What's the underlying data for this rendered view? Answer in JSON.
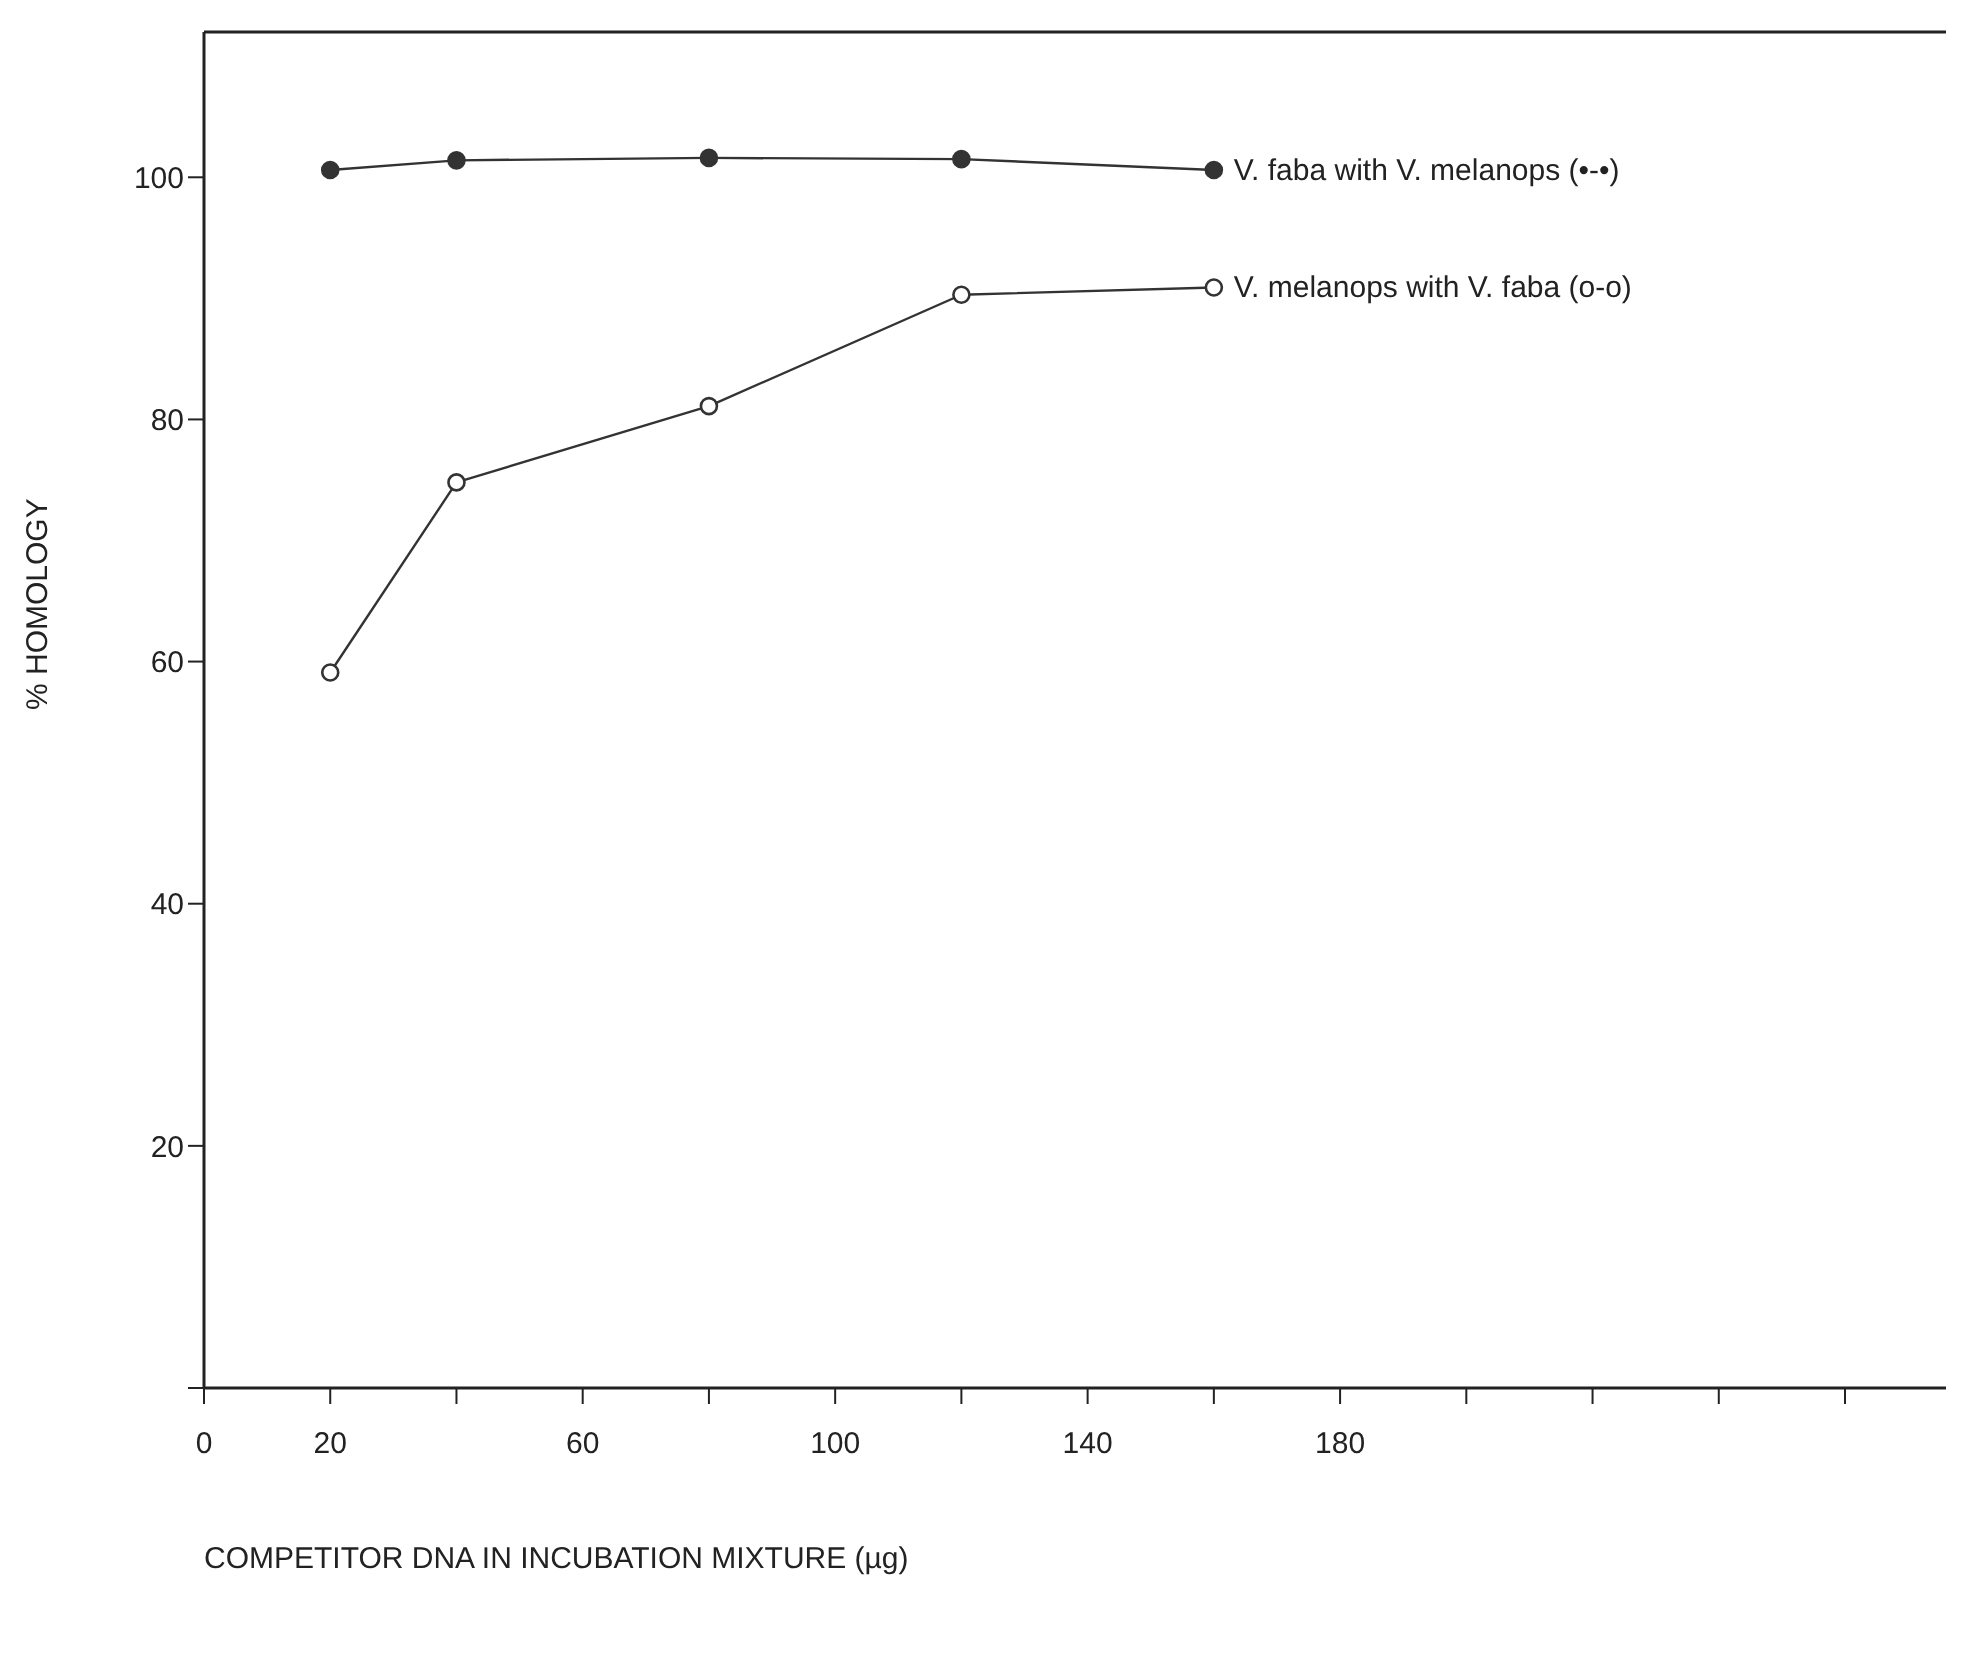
{
  "chart_data": {
    "type": "line",
    "xlabel": "COMPETITOR DNA IN INCUBATION MIXTURE (µg)",
    "ylabel": "% HOMOLOGY",
    "x": [
      20,
      40,
      80,
      120,
      160
    ],
    "series": [
      {
        "name": "V. faba with V. melanops (•-•)",
        "color": "#333333",
        "values": [
          100.6,
          101.4,
          101.6,
          101.5,
          100.6
        ]
      },
      {
        "name": "V. melanops with V. faba (o-o)",
        "color": "#333333",
        "values": [
          59.1,
          74.8,
          81.1,
          90.3,
          90.9
        ]
      }
    ],
    "xlim": [
      0,
      276
    ],
    "xticks": [
      0,
      20,
      {
        "value": 40,
        "label": null
      },
      60,
      {
        "value": 80,
        "label": null
      },
      100,
      {
        "value": 120,
        "label": null
      },
      140,
      {
        "value": 160,
        "label": null
      },
      180,
      {
        "value": 200,
        "label": null
      },
      {
        "value": 220,
        "label": null
      },
      {
        "value": 240,
        "label": null
      },
      {
        "value": 260,
        "label": null
      }
    ],
    "ylim": [
      0,
      112
    ],
    "yticks": [
      {
        "value": 0,
        "label": null
      },
      20,
      40,
      60,
      80,
      100
    ],
    "grid": false,
    "legend": false,
    "marker": "circle",
    "line_style": "solid"
  }
}
